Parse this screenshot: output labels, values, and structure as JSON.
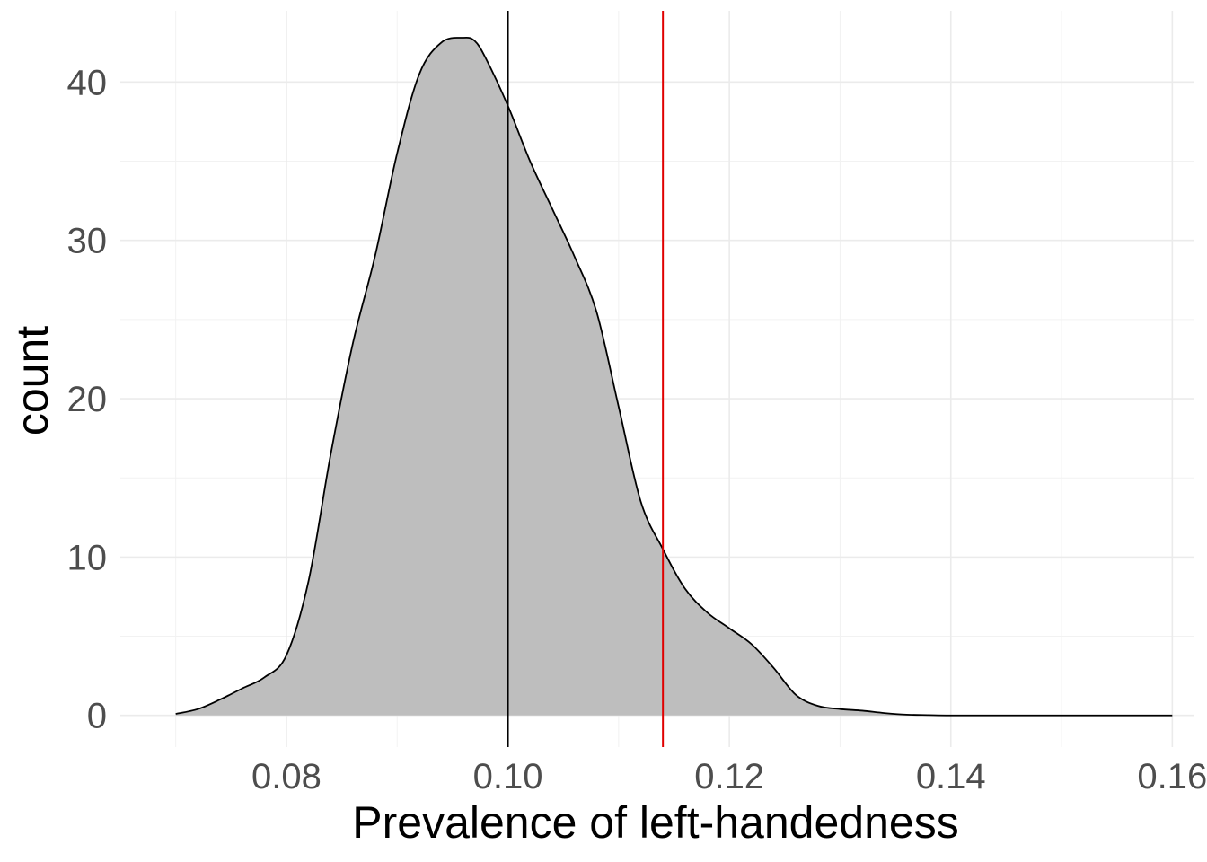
{
  "chart_data": {
    "type": "area",
    "subtype": "density",
    "xlabel": "Prevalence of left-handedness",
    "ylabel": "count",
    "xlim": [
      0.065,
      0.162
    ],
    "ylim": [
      -2,
      44.5
    ],
    "x_ticks": [
      0.08,
      0.1,
      0.12,
      0.14,
      0.16
    ],
    "x_tick_labels": [
      "0.08",
      "0.10",
      "0.12",
      "0.14",
      "0.16"
    ],
    "y_ticks": [
      0,
      10,
      20,
      30,
      40
    ],
    "y_tick_labels": [
      "0",
      "10",
      "20",
      "30",
      "40"
    ],
    "grid": true,
    "legend": "none",
    "fill_color": "#bebebe",
    "line_color": "#000000",
    "series": [
      {
        "x": [
          0.07,
          0.072,
          0.074,
          0.076,
          0.078,
          0.08,
          0.082,
          0.084,
          0.086,
          0.088,
          0.09,
          0.092,
          0.094,
          0.096,
          0.097,
          0.098,
          0.1,
          0.102,
          0.104,
          0.106,
          0.108,
          0.11,
          0.112,
          0.114,
          0.116,
          0.118,
          0.12,
          0.122,
          0.124,
          0.126,
          0.128,
          0.13,
          0.132,
          0.134,
          0.136,
          0.138,
          0.14,
          0.145,
          0.15,
          0.155,
          0.16
        ],
        "y": [
          0.1,
          0.4,
          1.0,
          1.7,
          2.4,
          3.8,
          8.5,
          16.5,
          23.5,
          29.0,
          35.5,
          40.5,
          42.5,
          42.8,
          42.6,
          41.5,
          38.5,
          35.0,
          32.0,
          29.0,
          25.5,
          19.5,
          13.5,
          10.5,
          8.0,
          6.5,
          5.5,
          4.5,
          3.0,
          1.3,
          0.6,
          0.4,
          0.3,
          0.15,
          0.05,
          0.02,
          0.0,
          0.0,
          0.0,
          0.0,
          0.0
        ]
      }
    ],
    "reference_lines": [
      {
        "x": 0.1,
        "color": "#000000"
      },
      {
        "x": 0.114,
        "color": "#e00000"
      }
    ]
  }
}
